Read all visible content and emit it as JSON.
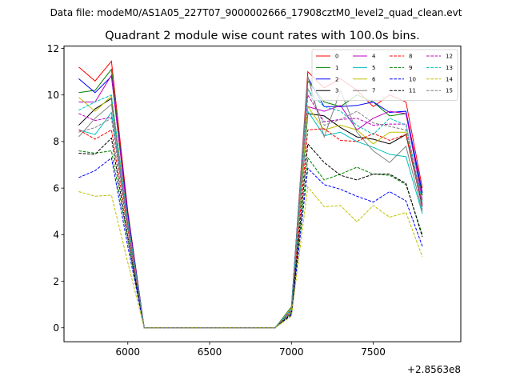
{
  "figure": {
    "suptitle": "Data file: modeM0/AS1A05_227T07_9000002666_17908cztM0_level2_quad_clean.evt",
    "title": "Quadrant 2 module wise count rates with 100.0s bins.",
    "x_offset_label": "+2.8563e8"
  },
  "chart_data": {
    "type": "line",
    "title": "Quadrant 2 module wise count rates with 100.0s bins.",
    "xlabel": "",
    "ylabel": "",
    "x_offset": 285630000,
    "xlim": [
      5610,
      8035
    ],
    "ylim": [
      -0.6,
      12.1
    ],
    "xticks": [
      6000,
      6500,
      7000,
      7500
    ],
    "xtick_labels": [
      "6000",
      "6500",
      "7000",
      "7500"
    ],
    "yticks": [
      0,
      2,
      4,
      6,
      8,
      10,
      12
    ],
    "ytick_labels": [
      "0",
      "2",
      "4",
      "6",
      "8",
      "10",
      "12"
    ],
    "grid": false,
    "legend_location": "upper-right",
    "legend_columns": 4,
    "x": [
      5700,
      5800,
      5900,
      6000,
      6100,
      6200,
      6300,
      6400,
      6500,
      6600,
      6700,
      6800,
      6900,
      7000,
      7100,
      7200,
      7300,
      7400,
      7500,
      7600,
      7700,
      7800
    ],
    "series": [
      {
        "name": "0",
        "color": "#ff0000",
        "style": "solid",
        "values": [
          11.2,
          10.6,
          11.45,
          5.0,
          0,
          0,
          0,
          0,
          0,
          0,
          0,
          0,
          0,
          0.8,
          11.0,
          10.3,
          10.7,
          10.2,
          9.5,
          10.0,
          9.7,
          6.0
        ]
      },
      {
        "name": "1",
        "color": "#008000",
        "style": "solid",
        "values": [
          10.1,
          10.2,
          11.1,
          4.8,
          0,
          0,
          0,
          0,
          0,
          0,
          0,
          0,
          0,
          0.9,
          10.6,
          9.7,
          9.5,
          10.0,
          9.7,
          9.1,
          9.2,
          5.7
        ]
      },
      {
        "name": "2",
        "color": "#0000ff",
        "style": "solid",
        "values": [
          10.7,
          10.1,
          10.8,
          4.9,
          0,
          0,
          0,
          0,
          0,
          0,
          0,
          0,
          0,
          0.85,
          10.75,
          9.5,
          9.5,
          9.55,
          9.7,
          9.25,
          9.3,
          5.8
        ]
      },
      {
        "name": "3",
        "color": "#000000",
        "style": "solid",
        "values": [
          8.7,
          9.4,
          9.85,
          4.6,
          0,
          0,
          0,
          0,
          0,
          0,
          0,
          0,
          0,
          0.8,
          9.2,
          9.1,
          8.6,
          8.2,
          8.1,
          7.9,
          8.3,
          5.2
        ]
      },
      {
        "name": "4",
        "color": "#bf00bf",
        "style": "solid",
        "values": [
          9.7,
          9.7,
          10.85,
          4.7,
          0,
          0,
          0,
          0,
          0,
          0,
          0,
          0,
          0,
          0.85,
          9.5,
          9.3,
          9.55,
          8.5,
          9.0,
          9.3,
          9.2,
          5.5
        ]
      },
      {
        "name": "5",
        "color": "#00bfbf",
        "style": "solid",
        "values": [
          8.5,
          8.3,
          9.25,
          4.4,
          0,
          0,
          0,
          0,
          0,
          0,
          0,
          0,
          0,
          0.8,
          9.3,
          8.25,
          8.4,
          8.0,
          7.75,
          7.45,
          7.35,
          4.9
        ]
      },
      {
        "name": "6",
        "color": "#bfbf00",
        "style": "solid",
        "values": [
          9.9,
          9.3,
          9.95,
          4.6,
          0,
          0,
          0,
          0,
          0,
          0,
          0,
          0,
          0,
          0.85,
          9.5,
          8.5,
          8.7,
          8.5,
          7.9,
          8.4,
          8.4,
          5.4
        ]
      },
      {
        "name": "7",
        "color": "#808080",
        "style": "solid",
        "values": [
          8.2,
          9.0,
          9.6,
          4.5,
          0,
          0,
          0,
          0,
          0,
          0,
          0,
          0,
          0,
          0.8,
          10.8,
          8.2,
          10.2,
          8.4,
          7.6,
          7.1,
          7.8,
          5.0
        ]
      },
      {
        "name": "8",
        "color": "#ff0000",
        "style": "dashed",
        "values": [
          8.5,
          8.1,
          8.5,
          4.2,
          0,
          0,
          0,
          0,
          0,
          0,
          0,
          0,
          0,
          0.7,
          8.5,
          8.55,
          8.05,
          8.0,
          8.35,
          8.05,
          8.3,
          5.3
        ]
      },
      {
        "name": "9",
        "color": "#008000",
        "style": "dashed",
        "values": [
          7.6,
          7.5,
          7.6,
          3.8,
          0,
          0,
          0,
          0,
          0,
          0,
          0,
          0,
          0,
          0.65,
          7.3,
          6.35,
          6.6,
          6.9,
          6.6,
          6.55,
          6.15,
          4.0
        ]
      },
      {
        "name": "10",
        "color": "#0000ff",
        "style": "dashed",
        "values": [
          6.45,
          6.75,
          7.3,
          3.5,
          0,
          0,
          0,
          0,
          0,
          0,
          0,
          0,
          0,
          0.55,
          6.85,
          6.15,
          5.95,
          5.65,
          5.4,
          5.85,
          5.45,
          3.5
        ]
      },
      {
        "name": "11",
        "color": "#000000",
        "style": "dashed",
        "values": [
          7.5,
          7.45,
          8.15,
          3.9,
          0,
          0,
          0,
          0,
          0,
          0,
          0,
          0,
          0,
          0.6,
          7.9,
          7.1,
          6.55,
          6.35,
          6.6,
          6.6,
          6.2,
          3.9
        ]
      },
      {
        "name": "12",
        "color": "#bf00bf",
        "style": "dashed",
        "values": [
          9.2,
          8.9,
          9.05,
          4.4,
          0,
          0,
          0,
          0,
          0,
          0,
          0,
          0,
          0,
          0.75,
          10.0,
          8.85,
          8.95,
          9.0,
          8.7,
          8.75,
          8.75,
          5.2
        ]
      },
      {
        "name": "13",
        "color": "#00bfbf",
        "style": "dashed",
        "values": [
          9.35,
          9.7,
          10.0,
          4.6,
          0,
          0,
          0,
          0,
          0,
          0,
          0,
          0,
          0,
          0.8,
          10.2,
          9.5,
          9.3,
          8.7,
          8.3,
          9.0,
          8.7,
          5.4
        ]
      },
      {
        "name": "14",
        "color": "#bfbf00",
        "style": "dashed",
        "values": [
          5.85,
          5.65,
          5.7,
          2.8,
          0,
          0,
          0,
          0,
          0,
          0,
          0,
          0,
          0,
          0.5,
          6.05,
          5.2,
          5.25,
          4.55,
          5.25,
          4.75,
          4.95,
          3.05
        ]
      },
      {
        "name": "15",
        "color": "#808080",
        "style": "dashed",
        "values": [
          8.4,
          8.6,
          9.0,
          4.3,
          0,
          0,
          0,
          0,
          0,
          0,
          0,
          0,
          0,
          0.7,
          10.3,
          8.7,
          8.95,
          9.3,
          8.8,
          8.65,
          8.5,
          5.1
        ]
      }
    ]
  }
}
